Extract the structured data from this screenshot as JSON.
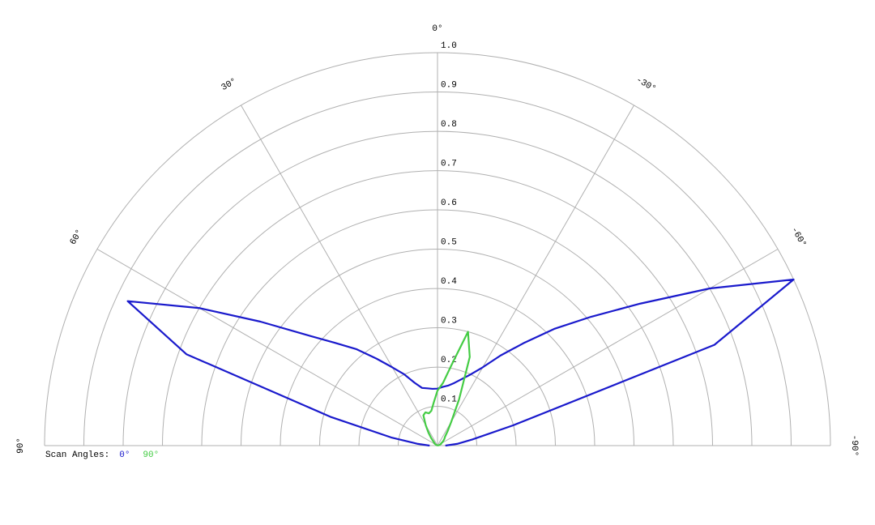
{
  "chart_data": {
    "type": "polar",
    "x": [
      -90,
      -85,
      -80,
      -75,
      -70,
      -65,
      -60,
      -55,
      -50,
      -45,
      -40,
      -35,
      -30,
      -25,
      -20,
      -15,
      -10,
      -5,
      0,
      5,
      10,
      15,
      20,
      25,
      30,
      35,
      40,
      45,
      50,
      55,
      60,
      65,
      70,
      75,
      80,
      85,
      90
    ],
    "series": [
      {
        "name": "0°",
        "color": "#1a1acc",
        "values": [
          0.02,
          0.05,
          0.09,
          0.2,
          0.75,
          1.0,
          0.8,
          0.63,
          0.51,
          0.42,
          0.34,
          0.28,
          0.23,
          0.2,
          0.18,
          0.165,
          0.155,
          0.15,
          0.145,
          0.145,
          0.148,
          0.152,
          0.17,
          0.2,
          0.23,
          0.27,
          0.32,
          0.37,
          0.44,
          0.55,
          0.7,
          0.87,
          0.68,
          0.28,
          0.12,
          0.05,
          0.02
        ]
      },
      {
        "name": "90°",
        "color": "#44cc44",
        "values": [
          0,
          0,
          0,
          0.005,
          0.005,
          0.01,
          0.01,
          0.015,
          0.02,
          0.025,
          0.03,
          0.045,
          0.07,
          0.13,
          0.24,
          0.3,
          0.21,
          0.16,
          0.14,
          0.11,
          0.09,
          0.085,
          0.09,
          0.085,
          0.06,
          0.04,
          0.025,
          0.015,
          0.01,
          0.01,
          0.005,
          0,
          0,
          0,
          0,
          0,
          0
        ]
      }
    ],
    "legend_title": "Scan Angles:",
    "rlim": [
      0,
      1
    ],
    "rticks": [
      0.1,
      0.2,
      0.3,
      0.4,
      0.5,
      0.6,
      0.7,
      0.8,
      0.9,
      {
        "value": 1,
        "label": "1.0"
      }
    ],
    "xlim": [
      -90,
      90
    ],
    "xticks": [
      {
        "value": 90,
        "label": "90°"
      },
      {
        "value": 60,
        "label": "60°"
      },
      {
        "value": 30,
        "label": "30°"
      },
      {
        "value": 0,
        "label": "0°"
      },
      {
        "value": -30,
        "label": "-30°"
      },
      {
        "value": -60,
        "label": "-60°"
      },
      {
        "value": -90,
        "label": "-90°"
      }
    ],
    "grid": true
  }
}
